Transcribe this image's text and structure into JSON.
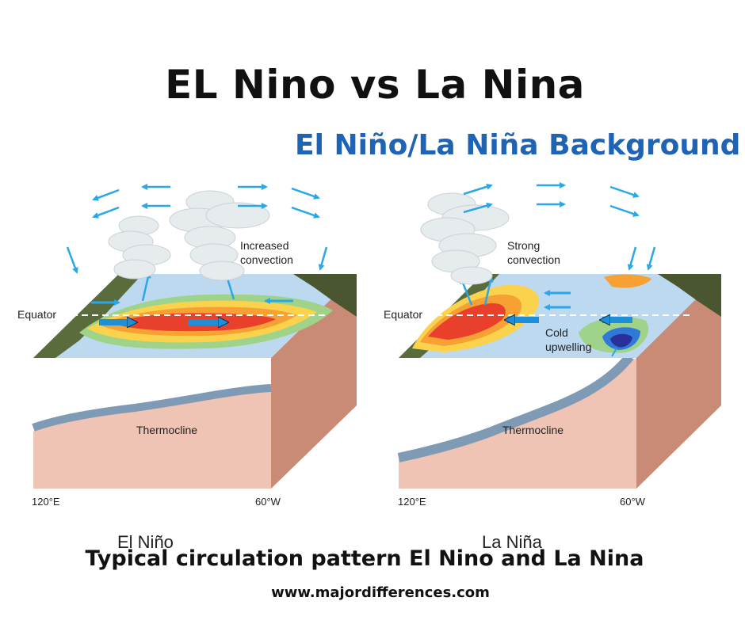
{
  "title": "EL Nino vs La Nina",
  "subtitle": "El Niño/La Niña Background",
  "panels": [
    {
      "name": "El Niño",
      "convection_label_1": "Increased",
      "convection_label_2": "convection",
      "equator_label": "Equator",
      "thermocline_label": "Thermocline",
      "lon_left": "120°E",
      "lon_right": "60°W"
    },
    {
      "name": "La Niña",
      "convection_label_1": "Strong",
      "convection_label_2": "convection",
      "equator_label": "Equator",
      "upwelling_label_1": "Cold",
      "upwelling_label_2": "upwelling",
      "thermocline_label": "Thermocline",
      "lon_left": "120°E",
      "lon_right": "60°W"
    }
  ],
  "caption": "Typical circulation pattern  El Nino and La Nina",
  "website": "www.majordifferences.com",
  "colors": {
    "title": "#111111",
    "subtitle": "#1f63b4",
    "arrow": "#2aa7e6",
    "ocean_surface": "#bcd9f0",
    "warm_water": "#e8402a",
    "subsurface": "#f0c4b4",
    "deep_side": "#c98a76"
  }
}
